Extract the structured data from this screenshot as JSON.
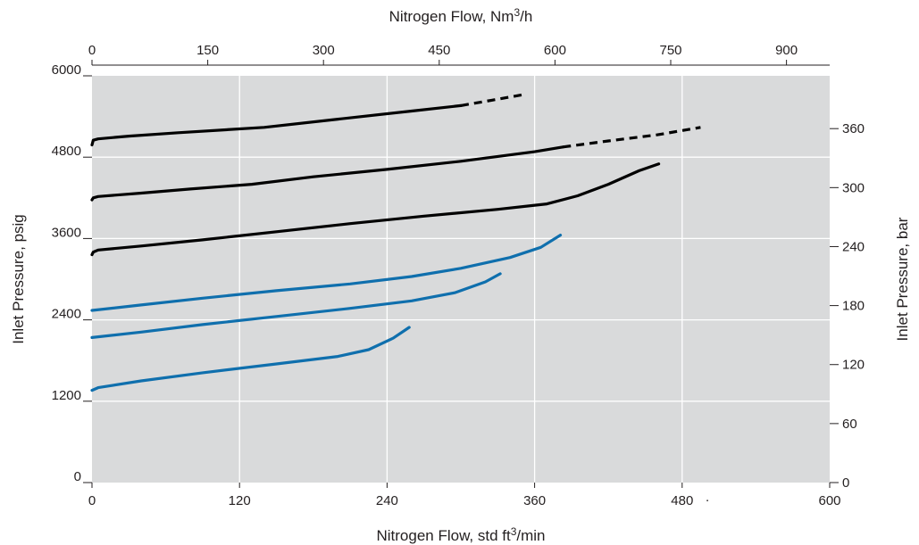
{
  "chart_data": {
    "type": "line",
    "grid": true,
    "plot_background": "#d9dadb",
    "axes": {
      "x_bottom": {
        "label_pre": "Nitrogen Flow, std ft",
        "label_sup": "3",
        "label_post": "/min",
        "ticks": [
          "0",
          "120",
          "240",
          "360",
          "480",
          "600"
        ],
        "range": [
          0,
          600
        ]
      },
      "x_top": {
        "label_pre": "Nitrogen Flow, Nm",
        "label_sup": "3",
        "label_post": "/h",
        "ticks": [
          "0",
          "150",
          "300",
          "450",
          "600",
          "750",
          "900"
        ],
        "range": [
          0,
          956
        ]
      },
      "y_left": {
        "label": "Inlet Pressure, psig",
        "ticks": [
          "0",
          "1200",
          "2400",
          "3600",
          "4800",
          "6000"
        ],
        "range": [
          0,
          6000
        ]
      },
      "y_right": {
        "label": "Inlet Pressure, bar",
        "ticks": [
          "0",
          "60",
          "120",
          "180",
          "240",
          "300",
          "360"
        ],
        "range": [
          0,
          413.7
        ]
      }
    },
    "stray_mark": ".",
    "series": [
      {
        "color": "#000000",
        "style": "solid",
        "points": [
          [
            0,
            4980
          ],
          [
            1,
            5050
          ],
          [
            5,
            5070
          ],
          [
            30,
            5110
          ],
          [
            70,
            5160
          ],
          [
            140,
            5240
          ],
          [
            200,
            5360
          ],
          [
            260,
            5480
          ],
          [
            300,
            5560
          ]
        ],
        "dashed_points": [
          [
            300,
            5560
          ],
          [
            325,
            5640
          ],
          [
            350,
            5720
          ]
        ]
      },
      {
        "color": "#000000",
        "style": "solid",
        "points": [
          [
            0,
            4170
          ],
          [
            1,
            4200
          ],
          [
            5,
            4220
          ],
          [
            40,
            4270
          ],
          [
            80,
            4330
          ],
          [
            130,
            4400
          ],
          [
            180,
            4510
          ],
          [
            240,
            4620
          ],
          [
            300,
            4740
          ],
          [
            360,
            4880
          ],
          [
            383,
            4950
          ]
        ],
        "dashed_points": [
          [
            383,
            4950
          ],
          [
            420,
            5040
          ],
          [
            460,
            5130
          ],
          [
            495,
            5240
          ]
        ]
      },
      {
        "color": "#000000",
        "style": "solid",
        "points": [
          [
            0,
            3360
          ],
          [
            1,
            3400
          ],
          [
            5,
            3430
          ],
          [
            40,
            3490
          ],
          [
            90,
            3580
          ],
          [
            150,
            3700
          ],
          [
            210,
            3820
          ],
          [
            270,
            3930
          ],
          [
            330,
            4030
          ],
          [
            370,
            4110
          ],
          [
            395,
            4230
          ],
          [
            420,
            4400
          ],
          [
            445,
            4600
          ],
          [
            461,
            4700
          ]
        ],
        "dashed_points": []
      },
      {
        "color": "#0f6fad",
        "style": "solid",
        "points": [
          [
            0,
            2540
          ],
          [
            40,
            2620
          ],
          [
            90,
            2720
          ],
          [
            150,
            2830
          ],
          [
            210,
            2930
          ],
          [
            260,
            3040
          ],
          [
            300,
            3160
          ],
          [
            340,
            3320
          ],
          [
            365,
            3470
          ],
          [
            381,
            3650
          ]
        ],
        "dashed_points": []
      },
      {
        "color": "#0f6fad",
        "style": "solid",
        "points": [
          [
            0,
            2140
          ],
          [
            40,
            2220
          ],
          [
            90,
            2330
          ],
          [
            150,
            2450
          ],
          [
            210,
            2570
          ],
          [
            260,
            2680
          ],
          [
            295,
            2800
          ],
          [
            320,
            2960
          ],
          [
            332,
            3080
          ]
        ],
        "dashed_points": []
      },
      {
        "color": "#0f6fad",
        "style": "solid",
        "points": [
          [
            0,
            1360
          ],
          [
            5,
            1400
          ],
          [
            40,
            1500
          ],
          [
            90,
            1620
          ],
          [
            150,
            1750
          ],
          [
            200,
            1860
          ],
          [
            225,
            1960
          ],
          [
            245,
            2130
          ],
          [
            258,
            2290
          ]
        ],
        "dashed_points": []
      }
    ]
  }
}
